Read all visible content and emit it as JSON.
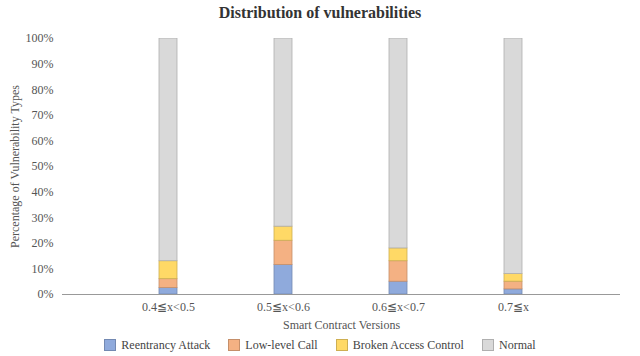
{
  "chart_data": {
    "type": "bar",
    "stacked": true,
    "title": "Distribution of vulnerabilities",
    "x_label": "Smart Contract Versions",
    "y_label": "Percentage of Vulnerability Types",
    "categories": [
      "0.4≦x<0.5",
      "0.5≦x<0.6",
      "0.6≦x<0.7",
      "0.7≦x"
    ],
    "series": [
      {
        "name": "Reentrancy Attack",
        "color": "#8faadc",
        "values": [
          2.5,
          11.5,
          5,
          2
        ]
      },
      {
        "name": "Low-level Call",
        "color": "#f4b183",
        "values": [
          3.5,
          9.5,
          8,
          3
        ]
      },
      {
        "name": "Broken Access Control",
        "color": "#ffd966",
        "values": [
          7,
          5.5,
          5,
          3
        ]
      },
      {
        "name": "Normal",
        "color": "#d9d9d9",
        "values": [
          87,
          73.5,
          82,
          92
        ]
      }
    ],
    "ylim": [
      0,
      100
    ],
    "yticks": [
      {
        "value": 0,
        "label": "0%"
      },
      {
        "value": 10,
        "label": "10%"
      },
      {
        "value": 20,
        "label": "20%"
      },
      {
        "value": 30,
        "label": "30%"
      },
      {
        "value": 40,
        "label": "40%"
      },
      {
        "value": 50,
        "label": "50%"
      },
      {
        "value": 60,
        "label": "60%"
      },
      {
        "value": 70,
        "label": "70%"
      },
      {
        "value": 80,
        "label": "80%"
      },
      {
        "value": 90,
        "label": "90%"
      },
      {
        "value": 100,
        "label": "100%"
      }
    ],
    "grid": false,
    "legend": "bottom"
  }
}
